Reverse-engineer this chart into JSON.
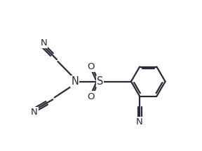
{
  "background_color": "#ffffff",
  "line_color": "#2a2a3a",
  "line_width": 1.6,
  "font_size": 9.5,
  "figsize": [
    2.88,
    2.16
  ],
  "dpi": 100,
  "xlim": [
    0,
    10
  ],
  "ylim": [
    0,
    7.5
  ]
}
